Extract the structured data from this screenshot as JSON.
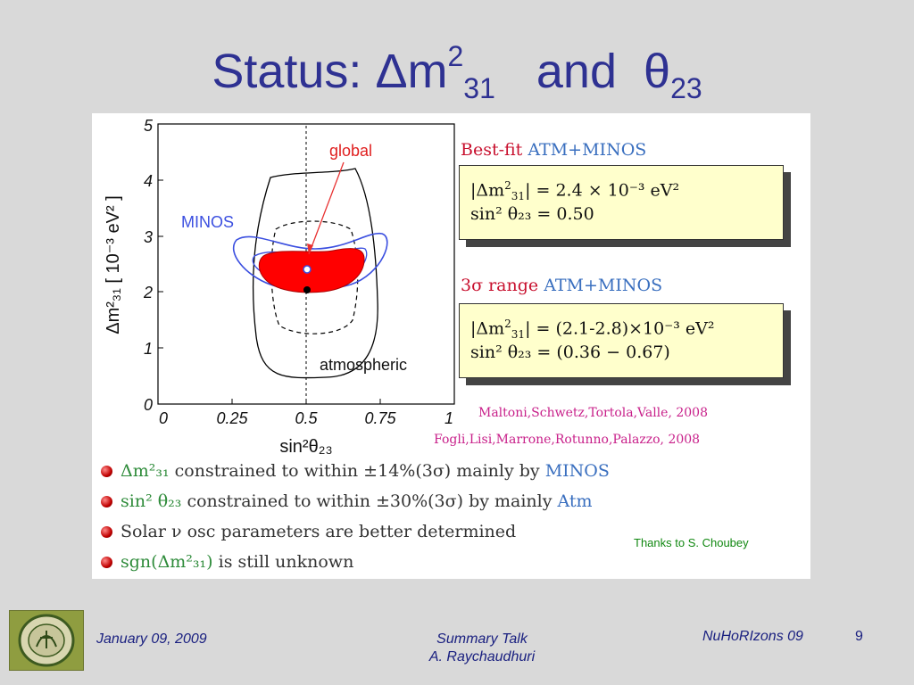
{
  "slide": {
    "title_prefix": "Status: Δm",
    "title_sup": "2",
    "title_sub": "31",
    "title_and": "and",
    "title_theta": "θ",
    "title_theta_sub": "23"
  },
  "plot": {
    "ylabel": "Δm²₃₁ [ 10⁻³ eV² ]",
    "xlabel": "sin²θ₂₃",
    "x_ticks": [
      "0",
      "0.25",
      "0.5",
      "0.75",
      "1"
    ],
    "y_ticks": [
      "0",
      "1",
      "2",
      "3",
      "4",
      "5"
    ],
    "label_global": "global",
    "label_minos": "MINOS",
    "label_atmospheric": "atmospheric",
    "colors": {
      "minos_contour": "#3b4fe0",
      "global_fill": "#ff0000",
      "atmospheric_contour": "#000000",
      "arrow": "#e83030"
    }
  },
  "bestfit": {
    "heading_red": "Best-fit",
    "heading_blue": "ATM+MINOS",
    "line1_lhs": "|Δm",
    "line1_sup": "2",
    "line1_sub": "31",
    "line1_rhs": "| = 2.4 × 10⁻³ eV²",
    "line2": "sin² θ₂₃ = 0.50"
  },
  "range3sigma": {
    "heading_red": "3σ  range",
    "heading_blue": "ATM+MINOS",
    "line1_lhs": "|Δm",
    "line1_sup": "2",
    "line1_sub": "31",
    "line1_rhs": "| = (2.1-2.8)×10⁻³ eV²",
    "line2": "sin² θ₂₃ = (0.36 − 0.67)"
  },
  "references": [
    "Maltoni,Schwetz,Tortola,Valle,  2008",
    "Fogli,Lisi,Marrone,Rotunno,Palazzo,  2008"
  ],
  "bullets": {
    "b1_green": "Δm²₃₁",
    "b1_text": " constrained to within ±14%(3σ) mainly by ",
    "b1_blue": "MINOS",
    "b2_green": "sin² θ₂₃",
    "b2_text": " constrained to within ±30%(3σ) by mainly ",
    "b2_blue": "Atm",
    "b3_text": "Solar ν osc parameters are better determined",
    "b4_green": "sgn(Δm²₃₁)",
    "b4_text": " is still unknown"
  },
  "thanks": "Thanks to S. Choubey",
  "footer": {
    "date": "January 09, 2009",
    "center_line1": "Summary Talk",
    "center_line2": "A. Raychaudhuri",
    "conference": "NuHoRIzons 09",
    "page": "9"
  }
}
